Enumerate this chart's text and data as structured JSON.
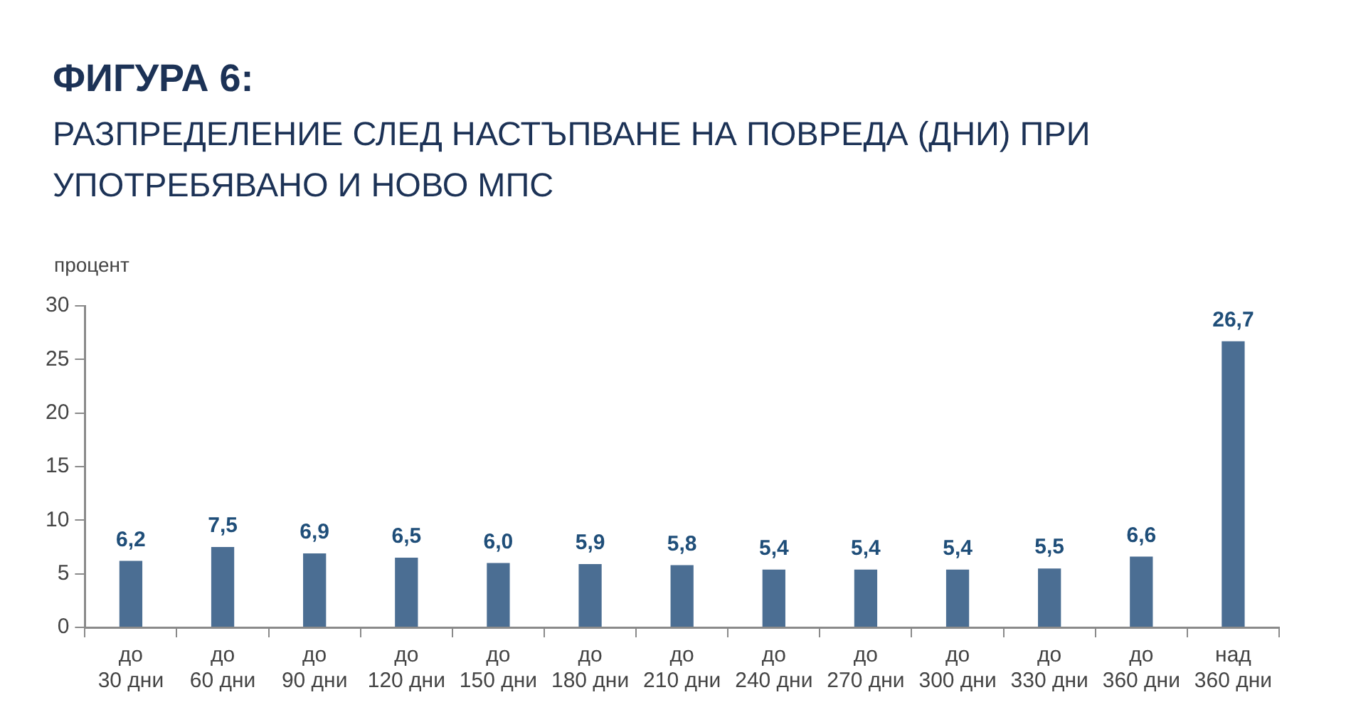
{
  "chart_data": {
    "type": "bar",
    "title": "ФИГУРА 6:",
    "subtitle": "РАЗПРЕДЕЛЕНИЕ СЛЕД НАСТЪПВАНЕ НА ПОВРЕДА (ДНИ) ПРИ УПОТРЕБЯВАНО И НОВО МПС",
    "ylabel": "процент",
    "categories": [
      "до 30 дни",
      "до 60 дни",
      "до 90 дни",
      "до 120 дни",
      "до 150 дни",
      "до 180 дни",
      "до 210 дни",
      "до 240 дни",
      "до 270 дни",
      "до 300 дни",
      "до 330 дни",
      "до 360 дни",
      "над 360 дни"
    ],
    "values": [
      6.2,
      7.5,
      6.9,
      6.5,
      6.0,
      5.9,
      5.8,
      5.4,
      5.4,
      5.4,
      5.5,
      6.6,
      26.7
    ],
    "value_labels": [
      "6,2",
      "7,5",
      "6,9",
      "6,5",
      "6,0",
      "5,9",
      "5,8",
      "5,4",
      "5,4",
      "5,4",
      "5,5",
      "6,6",
      "26,7"
    ],
    "color": "#4b6e93",
    "ylim": [
      0,
      30
    ],
    "yticks": [
      0,
      5,
      10,
      15,
      20,
      25,
      30
    ],
    "grid": false,
    "legend": false
  }
}
